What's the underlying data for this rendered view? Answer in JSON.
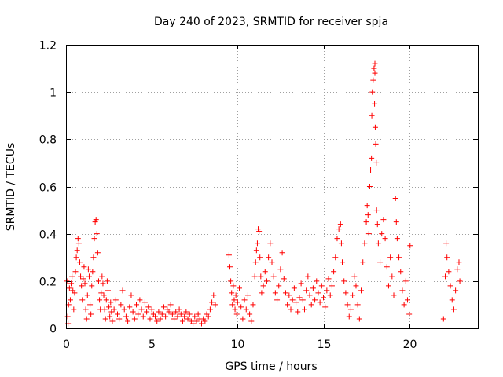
{
  "chart_data": {
    "type": "scatter",
    "title": "Day 240 of 2023, SRMTID for receiver spja",
    "xlabel": "GPS time / hours",
    "ylabel": "SRMTID / TECUs",
    "xlim": [
      0,
      24
    ],
    "ylim": [
      0,
      1.2
    ],
    "xticks": [
      0,
      5,
      10,
      15,
      20
    ],
    "xtick_labels": [
      "0",
      "5",
      "10",
      "15",
      "20"
    ],
    "yticks": [
      0,
      0.2,
      0.4,
      0.6,
      0.8,
      1,
      1.2
    ],
    "ytick_labels": [
      "0",
      "0.2",
      "0.4",
      "0.6",
      "0.8",
      "1",
      "1.2"
    ],
    "grid": true,
    "marker": "+",
    "color": "#ff0000",
    "series": [
      {
        "name": "SRMTID",
        "points": [
          [
            0.05,
            0.2
          ],
          [
            0.1,
            0.05
          ],
          [
            0.12,
            0.02
          ],
          [
            0.15,
            0.1
          ],
          [
            0.2,
            0.17
          ],
          [
            0.25,
            0.12
          ],
          [
            0.3,
            0.19
          ],
          [
            0.35,
            0.22
          ],
          [
            0.4,
            0.16
          ],
          [
            0.45,
            0.08
          ],
          [
            0.5,
            0.15
          ],
          [
            0.55,
            0.24
          ],
          [
            0.6,
            0.3
          ],
          [
            0.65,
            0.33
          ],
          [
            0.7,
            0.38
          ],
          [
            0.75,
            0.36
          ],
          [
            0.8,
            0.28
          ],
          [
            0.85,
            0.22
          ],
          [
            0.9,
            0.18
          ],
          [
            0.95,
            0.12
          ],
          [
            1.0,
            0.21
          ],
          [
            1.05,
            0.26
          ],
          [
            1.1,
            0.19
          ],
          [
            1.15,
            0.08
          ],
          [
            1.2,
            0.04
          ],
          [
            1.25,
            0.14
          ],
          [
            1.3,
            0.25
          ],
          [
            1.35,
            0.22
          ],
          [
            1.4,
            0.1
          ],
          [
            1.45,
            0.06
          ],
          [
            1.5,
            0.18
          ],
          [
            1.55,
            0.24
          ],
          [
            1.6,
            0.3
          ],
          [
            1.65,
            0.38
          ],
          [
            1.7,
            0.45
          ],
          [
            1.75,
            0.46
          ],
          [
            1.8,
            0.4
          ],
          [
            1.85,
            0.32
          ],
          [
            1.9,
            0.2
          ],
          [
            1.95,
            0.12
          ],
          [
            2.0,
            0.08
          ],
          [
            2.05,
            0.15
          ],
          [
            2.1,
            0.22
          ],
          [
            2.15,
            0.19
          ],
          [
            2.2,
            0.14
          ],
          [
            2.25,
            0.08
          ],
          [
            2.3,
            0.04
          ],
          [
            2.35,
            0.12
          ],
          [
            2.4,
            0.2
          ],
          [
            2.45,
            0.16
          ],
          [
            2.5,
            0.09
          ],
          [
            2.55,
            0.05
          ],
          [
            2.6,
            0.11
          ],
          [
            2.65,
            0.07
          ],
          [
            2.7,
            0.03
          ],
          [
            2.8,
            0.08
          ],
          [
            2.9,
            0.12
          ],
          [
            3.0,
            0.06
          ],
          [
            3.1,
            0.04
          ],
          [
            3.2,
            0.1
          ],
          [
            3.3,
            0.16
          ],
          [
            3.4,
            0.08
          ],
          [
            3.5,
            0.05
          ],
          [
            3.6,
            0.03
          ],
          [
            3.7,
            0.09
          ],
          [
            3.8,
            0.14
          ],
          [
            3.9,
            0.07
          ],
          [
            4.0,
            0.04
          ],
          [
            4.1,
            0.1
          ],
          [
            4.2,
            0.06
          ],
          [
            4.3,
            0.12
          ],
          [
            4.4,
            0.08
          ],
          [
            4.5,
            0.05
          ],
          [
            4.6,
            0.11
          ],
          [
            4.7,
            0.07
          ],
          [
            4.8,
            0.09
          ],
          [
            4.9,
            0.04
          ],
          [
            5.0,
            0.08
          ],
          [
            5.1,
            0.06
          ],
          [
            5.2,
            0.05
          ],
          [
            5.3,
            0.03
          ],
          [
            5.4,
            0.07
          ],
          [
            5.5,
            0.04
          ],
          [
            5.6,
            0.06
          ],
          [
            5.7,
            0.09
          ],
          [
            5.8,
            0.05
          ],
          [
            5.9,
            0.08
          ],
          [
            6.0,
            0.07
          ],
          [
            6.1,
            0.1
          ],
          [
            6.2,
            0.06
          ],
          [
            6.3,
            0.04
          ],
          [
            6.4,
            0.07
          ],
          [
            6.5,
            0.05
          ],
          [
            6.6,
            0.08
          ],
          [
            6.7,
            0.06
          ],
          [
            6.8,
            0.03
          ],
          [
            6.9,
            0.05
          ],
          [
            7.0,
            0.07
          ],
          [
            7.1,
            0.04
          ],
          [
            7.2,
            0.06
          ],
          [
            7.3,
            0.03
          ],
          [
            7.4,
            0.02
          ],
          [
            7.5,
            0.05
          ],
          [
            7.6,
            0.03
          ],
          [
            7.7,
            0.06
          ],
          [
            7.8,
            0.04
          ],
          [
            7.9,
            0.02
          ],
          [
            8.0,
            0.04
          ],
          [
            8.1,
            0.03
          ],
          [
            8.2,
            0.06
          ],
          [
            8.3,
            0.05
          ],
          [
            8.4,
            0.08
          ],
          [
            8.5,
            0.11
          ],
          [
            8.6,
            0.14
          ],
          [
            8.7,
            0.1
          ],
          [
            9.5,
            0.31
          ],
          [
            9.55,
            0.26
          ],
          [
            9.6,
            0.2
          ],
          [
            9.65,
            0.15
          ],
          [
            9.7,
            0.1
          ],
          [
            9.75,
            0.18
          ],
          [
            9.8,
            0.12
          ],
          [
            9.85,
            0.08
          ],
          [
            9.9,
            0.14
          ],
          [
            9.95,
            0.06
          ],
          [
            10.0,
            0.11
          ],
          [
            10.1,
            0.17
          ],
          [
            10.2,
            0.09
          ],
          [
            10.3,
            0.04
          ],
          [
            10.4,
            0.12
          ],
          [
            10.5,
            0.08
          ],
          [
            10.6,
            0.14
          ],
          [
            10.7,
            0.06
          ],
          [
            10.8,
            0.03
          ],
          [
            10.9,
            0.1
          ],
          [
            11.0,
            0.22
          ],
          [
            11.05,
            0.28
          ],
          [
            11.1,
            0.33
          ],
          [
            11.15,
            0.36
          ],
          [
            11.2,
            0.42
          ],
          [
            11.25,
            0.41
          ],
          [
            11.3,
            0.3
          ],
          [
            11.35,
            0.22
          ],
          [
            11.4,
            0.15
          ],
          [
            11.5,
            0.18
          ],
          [
            11.6,
            0.24
          ],
          [
            11.7,
            0.2
          ],
          [
            11.8,
            0.3
          ],
          [
            11.9,
            0.36
          ],
          [
            12.0,
            0.28
          ],
          [
            12.1,
            0.22
          ],
          [
            12.2,
            0.15
          ],
          [
            12.3,
            0.12
          ],
          [
            12.4,
            0.18
          ],
          [
            12.5,
            0.25
          ],
          [
            12.6,
            0.32
          ],
          [
            12.7,
            0.21
          ],
          [
            12.8,
            0.15
          ],
          [
            12.9,
            0.1
          ],
          [
            13.0,
            0.14
          ],
          [
            13.1,
            0.08
          ],
          [
            13.2,
            0.12
          ],
          [
            13.3,
            0.17
          ],
          [
            13.4,
            0.11
          ],
          [
            13.5,
            0.07
          ],
          [
            13.6,
            0.13
          ],
          [
            13.7,
            0.19
          ],
          [
            13.8,
            0.12
          ],
          [
            13.9,
            0.08
          ],
          [
            14.0,
            0.16
          ],
          [
            14.1,
            0.22
          ],
          [
            14.2,
            0.14
          ],
          [
            14.3,
            0.1
          ],
          [
            14.4,
            0.17
          ],
          [
            14.5,
            0.12
          ],
          [
            14.6,
            0.2
          ],
          [
            14.7,
            0.15
          ],
          [
            14.8,
            0.11
          ],
          [
            14.9,
            0.18
          ],
          [
            15.0,
            0.13
          ],
          [
            15.1,
            0.09
          ],
          [
            15.2,
            0.16
          ],
          [
            15.3,
            0.21
          ],
          [
            15.4,
            0.14
          ],
          [
            15.5,
            0.18
          ],
          [
            15.6,
            0.24
          ],
          [
            15.7,
            0.3
          ],
          [
            15.8,
            0.38
          ],
          [
            15.9,
            0.42
          ],
          [
            16.0,
            0.44
          ],
          [
            16.05,
            0.36
          ],
          [
            16.1,
            0.28
          ],
          [
            16.2,
            0.2
          ],
          [
            16.3,
            0.15
          ],
          [
            16.4,
            0.1
          ],
          [
            16.5,
            0.05
          ],
          [
            16.6,
            0.08
          ],
          [
            16.7,
            0.14
          ],
          [
            16.8,
            0.22
          ],
          [
            16.9,
            0.18
          ],
          [
            17.0,
            0.1
          ],
          [
            17.1,
            0.04
          ],
          [
            17.2,
            0.16
          ],
          [
            17.3,
            0.28
          ],
          [
            17.4,
            0.36
          ],
          [
            17.5,
            0.45
          ],
          [
            17.55,
            0.52
          ],
          [
            17.6,
            0.48
          ],
          [
            17.65,
            0.4
          ],
          [
            17.7,
            0.6
          ],
          [
            17.75,
            0.67
          ],
          [
            17.8,
            0.72
          ],
          [
            17.82,
            0.9
          ],
          [
            17.85,
            1.0
          ],
          [
            17.9,
            1.05
          ],
          [
            17.95,
            1.1
          ],
          [
            18.0,
            1.12
          ],
          [
            18.0,
            1.08
          ],
          [
            17.98,
            0.95
          ],
          [
            18.02,
            0.85
          ],
          [
            18.05,
            0.78
          ],
          [
            18.08,
            0.7
          ],
          [
            18.1,
            0.5
          ],
          [
            18.15,
            0.44
          ],
          [
            18.2,
            0.36
          ],
          [
            18.3,
            0.28
          ],
          [
            18.4,
            0.4
          ],
          [
            18.5,
            0.46
          ],
          [
            18.6,
            0.38
          ],
          [
            18.7,
            0.26
          ],
          [
            18.8,
            0.18
          ],
          [
            18.9,
            0.3
          ],
          [
            19.0,
            0.22
          ],
          [
            19.1,
            0.14
          ],
          [
            19.2,
            0.55
          ],
          [
            19.25,
            0.45
          ],
          [
            19.3,
            0.38
          ],
          [
            19.4,
            0.3
          ],
          [
            19.5,
            0.24
          ],
          [
            19.6,
            0.16
          ],
          [
            19.7,
            0.1
          ],
          [
            19.8,
            0.2
          ],
          [
            19.9,
            0.12
          ],
          [
            20.0,
            0.06
          ],
          [
            20.05,
            0.35
          ],
          [
            22.0,
            0.04
          ],
          [
            22.1,
            0.22
          ],
          [
            22.15,
            0.36
          ],
          [
            22.2,
            0.3
          ],
          [
            22.3,
            0.24
          ],
          [
            22.4,
            0.18
          ],
          [
            22.5,
            0.12
          ],
          [
            22.6,
            0.08
          ],
          [
            22.7,
            0.16
          ],
          [
            22.8,
            0.25
          ],
          [
            22.9,
            0.28
          ],
          [
            22.95,
            0.2
          ]
        ]
      }
    ]
  }
}
